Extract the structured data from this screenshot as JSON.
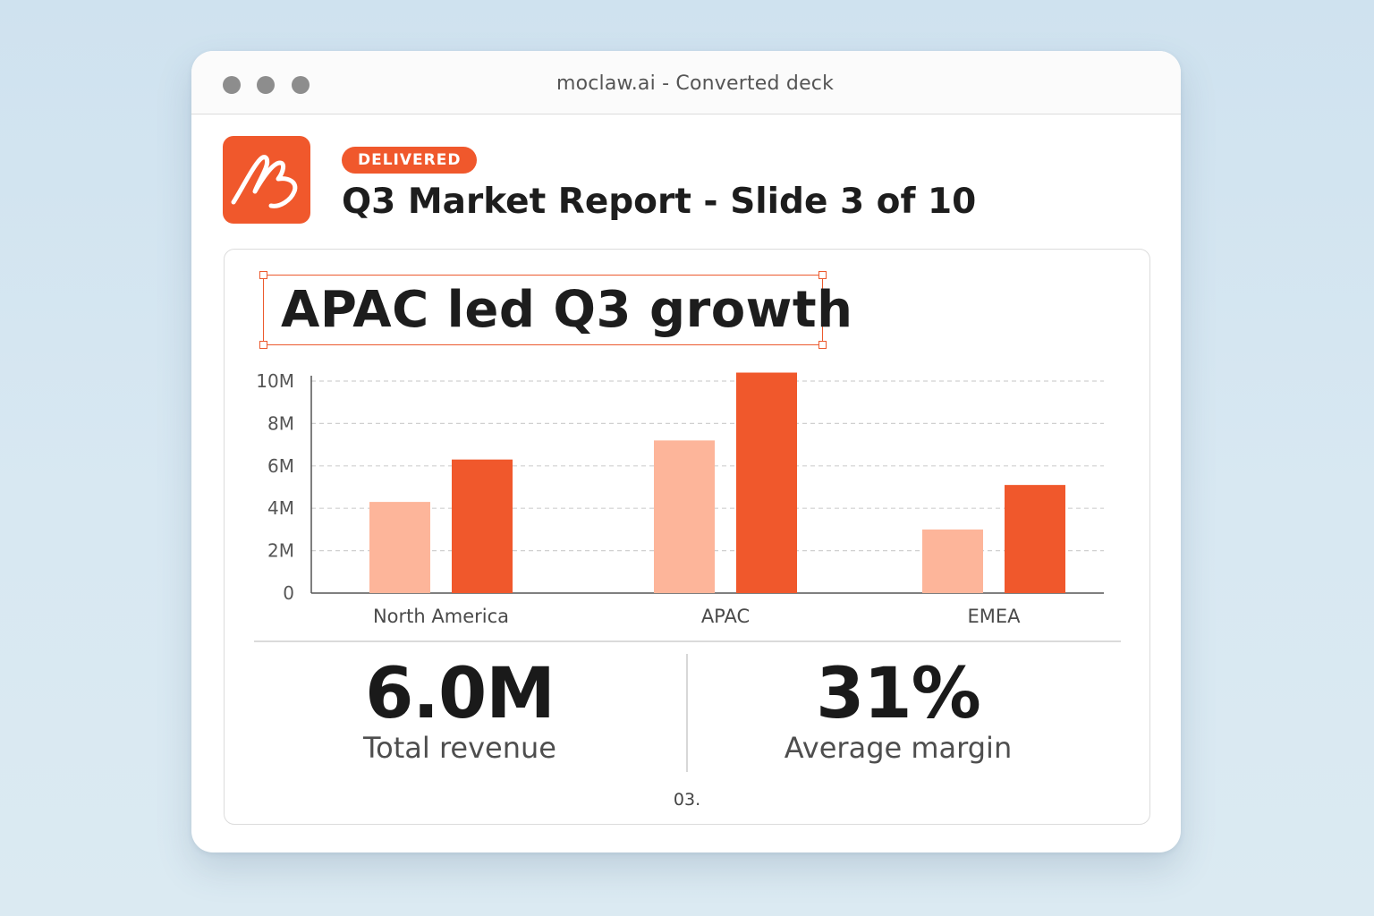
{
  "window": {
    "title": "moclaw.ai - Converted deck"
  },
  "header": {
    "logo_icon": "moclaw-logo-icon",
    "badge": "DELIVERED",
    "title": "Q3 Market Report - Slide 3 of 10"
  },
  "slide": {
    "headline": "APAC led Q3 growth",
    "kpis": [
      {
        "value": "6.0M",
        "label": "Total  revenue"
      },
      {
        "value": "31%",
        "label": "Average margin"
      }
    ],
    "page_number": "03."
  },
  "colors": {
    "accent": "#f0582c",
    "series_light": "#fdb59a",
    "series_dark": "#f0582c",
    "grid": "#d0d0d0"
  },
  "chart_data": {
    "type": "bar",
    "categories": [
      "North America",
      "APAC",
      "EMEA"
    ],
    "series": [
      {
        "values": [
          4.3,
          7.2,
          3.0
        ]
      },
      {
        "values": [
          6.3,
          10.4,
          5.1
        ]
      }
    ],
    "y_tick_labels": [
      "0",
      "2M",
      "4M",
      "6M",
      "8M",
      "10M"
    ],
    "y_ticks": [
      0,
      2,
      4,
      6,
      8,
      10
    ],
    "ylim": [
      0,
      10.4
    ],
    "unit": "M",
    "grid": true,
    "legend": false,
    "title": "",
    "xlabel": "",
    "ylabel": ""
  }
}
